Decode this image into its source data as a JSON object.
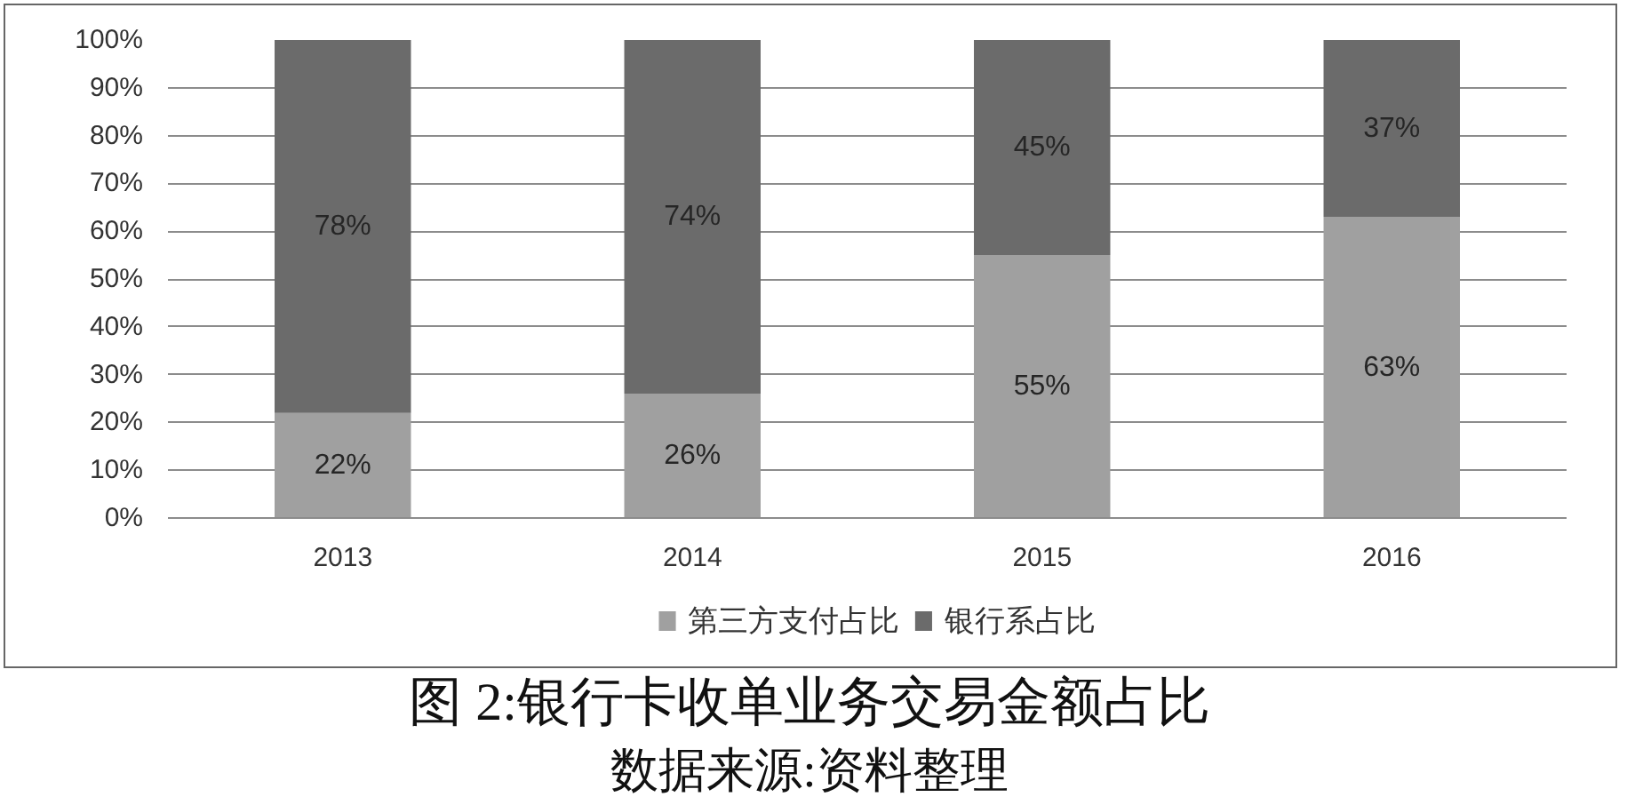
{
  "chart_data": {
    "type": "bar",
    "title": "图 2:银行卡收单业务交易金额占比",
    "annotations": [
      "数据来源:资料整理"
    ],
    "categories": [
      "2013",
      "2014",
      "2015",
      "2016"
    ],
    "stacked": true,
    "series": [
      {
        "name": "第三方支付占比",
        "color": "#a0a0a0",
        "values": [
          22,
          26,
          55,
          63
        ],
        "value_labels": [
          "22%",
          "26%",
          "55%",
          "63%"
        ]
      },
      {
        "name": "银行系占比",
        "color": "#6b6b6b",
        "values": [
          78,
          74,
          45,
          37
        ],
        "value_labels": [
          "78%",
          "74%",
          "45%",
          "37%"
        ]
      }
    ],
    "ylim": [
      0,
      100
    ],
    "yticks": [
      {
        "value": 0,
        "label": "0%"
      },
      {
        "value": 10,
        "label": "10%"
      },
      {
        "value": 20,
        "label": "20%"
      },
      {
        "value": 30,
        "label": "30%"
      },
      {
        "value": 40,
        "label": "40%"
      },
      {
        "value": 50,
        "label": "50%"
      },
      {
        "value": 60,
        "label": "60%"
      },
      {
        "value": 70,
        "label": "70%"
      },
      {
        "value": 80,
        "label": "80%"
      },
      {
        "value": 90,
        "label": "90%"
      },
      {
        "value": 100,
        "label": "100%"
      }
    ],
    "grid": "y",
    "legend": "bottom"
  }
}
